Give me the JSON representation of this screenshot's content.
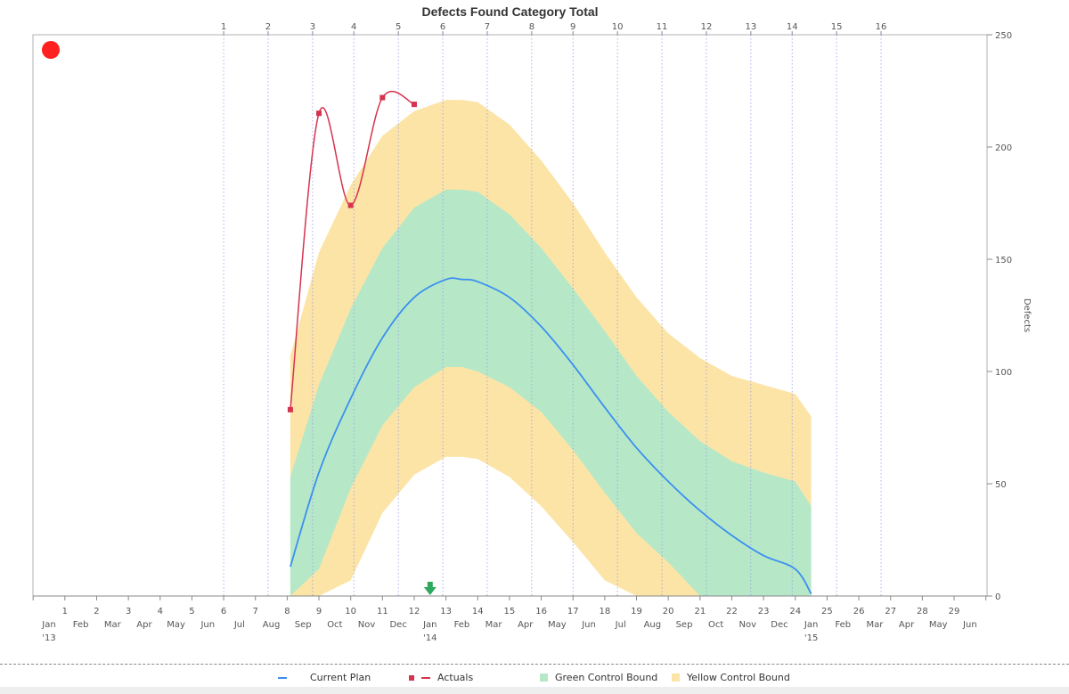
{
  "chart_data": {
    "type": "area",
    "title": "Defects Found Category Total",
    "ylabel": "Defects",
    "xlabel": "",
    "ylim": [
      0,
      250
    ],
    "y_ticks": [
      0,
      50,
      100,
      150,
      200,
      250
    ],
    "x_months": [
      "Jan",
      "Feb",
      "Mar",
      "Apr",
      "May",
      "Jun",
      "Jul",
      "Aug",
      "Sep",
      "Oct",
      "Nov",
      "Dec",
      "Jan",
      "Feb",
      "Mar",
      "Apr",
      "May",
      "Jun",
      "Jul",
      "Aug",
      "Sep",
      "Oct",
      "Nov",
      "Dec",
      "Jan",
      "Feb",
      "Mar",
      "Apr",
      "May",
      "Jun"
    ],
    "x_year_labels": [
      {
        "index": 0,
        "label": "'13"
      },
      {
        "index": 12,
        "label": "'14"
      },
      {
        "index": 24,
        "label": "'15"
      }
    ],
    "x_month_numbers": [
      "1",
      "2",
      "3",
      "4",
      "5",
      "6",
      "7",
      "8",
      "9",
      "10",
      "11",
      "12",
      "13",
      "14",
      "15",
      "16",
      "17",
      "18",
      "19",
      "20",
      "21",
      "22",
      "23",
      "24",
      "25",
      "26",
      "27",
      "28",
      "29"
    ],
    "top_week_labels": [
      "1",
      "2",
      "3",
      "4",
      "5",
      "6",
      "7",
      "8",
      "9",
      "10",
      "11",
      "12",
      "13",
      "14",
      "15",
      "16"
    ],
    "top_week_positions": [
      5.5,
      6.9,
      8.3,
      9.6,
      11.0,
      12.4,
      13.8,
      15.2,
      16.5,
      17.9,
      19.3,
      20.7,
      22.1,
      23.4,
      24.8,
      26.2
    ],
    "current_marker": 12.0,
    "status_color": "#ff2020",
    "series": [
      {
        "name": "Current Plan",
        "color": "#3b8ff0",
        "x": [
          7.6,
          8.5,
          9.5,
          10.5,
          11.5,
          12.5,
          13.0,
          13.5,
          14.5,
          15.5,
          16.5,
          17.5,
          18.5,
          19.5,
          20.5,
          21.5,
          22.5,
          23.5,
          24.0
        ],
        "y": [
          13,
          55,
          88,
          115,
          133,
          141,
          141,
          140,
          133,
          120,
          103,
          84,
          66,
          51,
          38,
          27,
          18,
          12,
          1
        ]
      },
      {
        "name": "Actuals",
        "color": "#d6334f",
        "x": [
          7.6,
          8.5,
          9.5,
          10.5,
          11.5
        ],
        "y": [
          83,
          215,
          174,
          222,
          219
        ]
      },
      {
        "name": "Green Control Bound",
        "color": "#b6e8c8",
        "x": [
          7.6,
          8.5,
          9.5,
          10.5,
          11.5,
          12.5,
          13.0,
          13.5,
          14.5,
          15.5,
          16.5,
          17.5,
          18.5,
          19.5,
          20.5,
          21.5,
          22.5,
          23.5,
          24.0
        ],
        "upper": [
          53,
          94,
          128,
          155,
          173,
          181,
          181,
          180,
          170,
          155,
          137,
          118,
          98,
          82,
          69,
          60,
          55,
          51,
          40
        ],
        "lower": [
          0,
          12,
          48,
          76,
          93,
          102,
          102,
          100,
          93,
          82,
          65,
          46,
          28,
          15,
          0,
          0,
          0,
          0,
          0
        ]
      },
      {
        "name": "Yellow Control Bound",
        "color": "#fce4a6",
        "x": [
          7.6,
          8.5,
          9.5,
          10.5,
          11.5,
          12.5,
          13.0,
          13.5,
          14.5,
          15.5,
          16.5,
          17.5,
          18.5,
          19.5,
          20.5,
          21.5,
          22.5,
          23.5,
          24.0
        ],
        "upper": [
          107,
          153,
          183,
          205,
          216,
          221,
          221,
          220,
          210,
          194,
          175,
          153,
          133,
          117,
          106,
          98,
          94,
          90,
          80
        ],
        "lower": [
          0,
          0,
          7,
          37,
          54,
          62,
          62,
          61,
          53,
          40,
          24,
          7,
          0,
          0,
          0,
          0,
          0,
          0,
          0
        ]
      }
    ],
    "grid": {
      "vertical_dotted": true,
      "horizontal": false
    },
    "legend_position": "bottom"
  }
}
